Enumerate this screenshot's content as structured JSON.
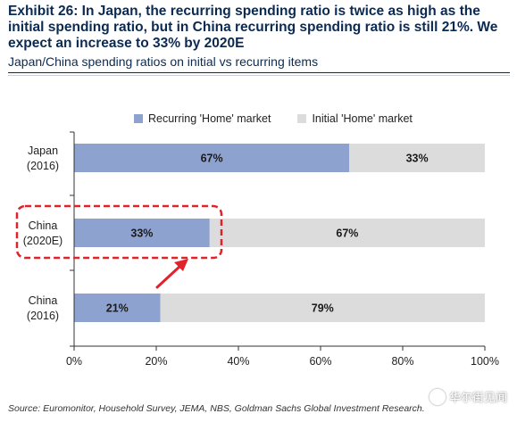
{
  "header": {
    "title": "Exhibit 26: In Japan, the recurring spending ratio is twice as high as the initial spending ratio, but in China recurring spending ratio is still 21%. We expect an increase to 33% by 2020E",
    "subtitle": "Japan/China spending ratios on initial vs recurring items"
  },
  "colors": {
    "recurring": "#8ea2cf",
    "initial": "#dcdcdc",
    "highlight": "#e0232b",
    "axis": "#333333"
  },
  "chart_data": {
    "type": "bar",
    "orientation": "horizontal",
    "stacked": true,
    "categories": [
      [
        "Japan",
        "(2016)"
      ],
      [
        "China",
        "(2020E)"
      ],
      [
        "China",
        "(2016)"
      ]
    ],
    "series": [
      {
        "name": "Recurring 'Home' market",
        "values": [
          67,
          33,
          21
        ],
        "labels": [
          "67%",
          "33%",
          "21%"
        ]
      },
      {
        "name": "Initial 'Home' market",
        "values": [
          33,
          67,
          79
        ],
        "labels": [
          "33%",
          "67%",
          "79%"
        ]
      }
    ],
    "xlim": [
      0,
      100
    ],
    "xticks": [
      "0%",
      "20%",
      "40%",
      "60%",
      "80%",
      "100%"
    ],
    "legend": "top",
    "grid": false,
    "annotations": [
      "dashed box around China (2020E) label and 33% segment",
      "arrow pointing up from China (2016) to China (2020E)"
    ]
  },
  "footer": {
    "source": "Source: Euromonitor, Household Survey, JEMA, NBS, Goldman Sachs Global Investment Research.",
    "watermark": "华尔街见闻"
  }
}
